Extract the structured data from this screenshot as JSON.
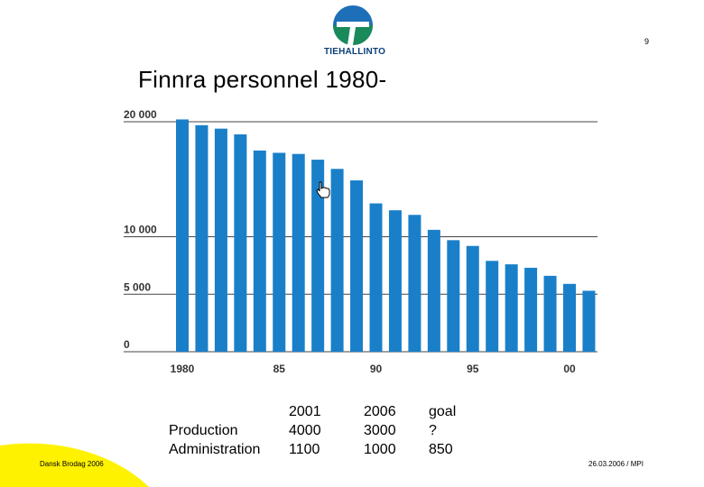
{
  "logo": {
    "text": "TIEHALLINTO"
  },
  "page_number": "9",
  "title": "Finnra personnel 1980-",
  "chart_data": {
    "type": "bar",
    "title": "Finnra personnel 1980-",
    "xlabel": "",
    "ylabel": "",
    "ylim": [
      0,
      20000
    ],
    "yticks": [
      0,
      5000,
      10000,
      20000
    ],
    "ytick_labels": [
      "0",
      "5 000",
      "10 000",
      "20 000"
    ],
    "xtick_labels": [
      {
        "year": 1980,
        "label": "1980"
      },
      {
        "year": 1985,
        "label": "85"
      },
      {
        "year": 1990,
        "label": "90"
      },
      {
        "year": 1995,
        "label": "95"
      },
      {
        "year": 2000,
        "label": "00"
      }
    ],
    "grid": true,
    "bar_color": "#1a7fc9",
    "categories": [
      1980,
      1981,
      1982,
      1983,
      1984,
      1985,
      1986,
      1987,
      1988,
      1989,
      1990,
      1991,
      1992,
      1993,
      1994,
      1995,
      1996,
      1997,
      1998,
      1999,
      2000,
      2001
    ],
    "values": [
      20200,
      19700,
      19400,
      18900,
      17500,
      17300,
      17200,
      16700,
      15900,
      14900,
      12900,
      12300,
      11900,
      10600,
      9700,
      9200,
      7900,
      7600,
      7300,
      6600,
      5900,
      5300
    ]
  },
  "staff_table": {
    "columns": [
      "",
      "2001",
      "2006",
      "goal"
    ],
    "rows": [
      {
        "label": "Production",
        "values": [
          "4000",
          "3000",
          "?"
        ]
      },
      {
        "label": "Administration",
        "values": [
          "1100",
          "1000",
          "850"
        ]
      }
    ]
  },
  "footer": {
    "left": "Dansk Brodag 2006",
    "right": "26.03.2006 / MPI"
  },
  "colors": {
    "accent_yellow": "#fff200",
    "logo_blue": "#1d6fb8",
    "logo_green": "#1a8a5a"
  }
}
